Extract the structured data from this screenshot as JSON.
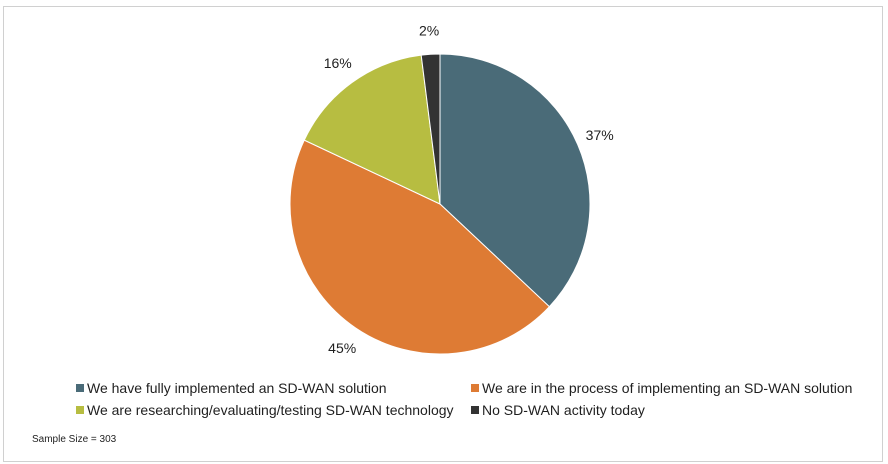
{
  "chart_data": {
    "type": "pie",
    "title": "",
    "categories": [
      "We have fully implemented an SD-WAN solution",
      "We are in the process of implementing an SD-WAN solution",
      "We are researching/evaluating/testing SD-WAN technology",
      "No SD-WAN activity today"
    ],
    "values": [
      37,
      45,
      16,
      2
    ],
    "labels": [
      "37%",
      "45%",
      "16%",
      "2%"
    ],
    "colors": [
      "#4a6b78",
      "#de7b34",
      "#b7bd41",
      "#333333"
    ],
    "legend_position": "bottom"
  },
  "footnote": "Sample Size = 303"
}
